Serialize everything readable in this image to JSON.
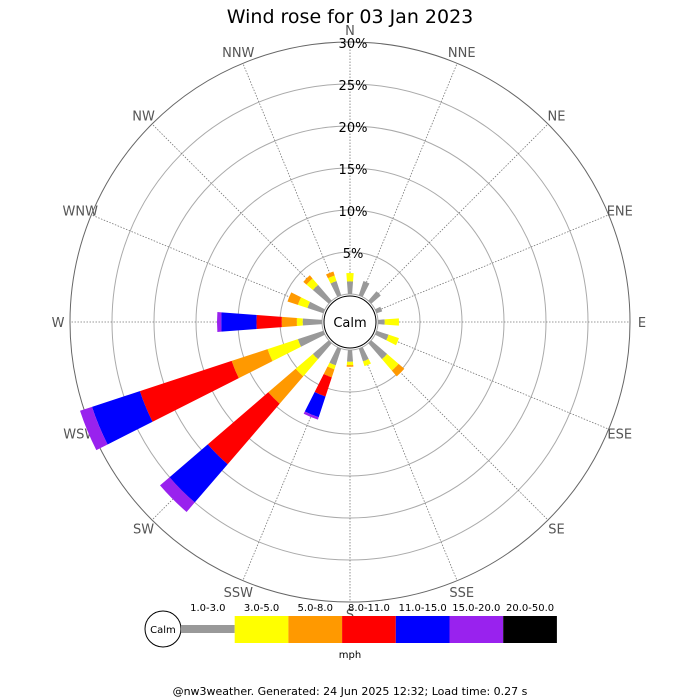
{
  "title": "Wind rose for 03 Jan 2023",
  "footer": "@nw3weather. Generated: 24 Jun 2025 12:32; Load time: 0.27 s",
  "chart_data": {
    "type": "wind-rose",
    "title": "Wind rose for 03 Jan 2023",
    "directions": [
      "N",
      "NNE",
      "NE",
      "ENE",
      "E",
      "ESE",
      "SE",
      "SSE",
      "S",
      "SSW",
      "SW",
      "WSW",
      "W",
      "WNW",
      "NW",
      "NNW"
    ],
    "radial_ticks": [
      "5%",
      "10%",
      "15%",
      "20%",
      "25%",
      "30%"
    ],
    "radial_max": 30,
    "radial_step": 5,
    "calm_label": "Calm",
    "unit": "mph",
    "bins": [
      {
        "label": "1.0-3.0",
        "color": "#999999"
      },
      {
        "label": "3.0-5.0",
        "color": "#ffff00"
      },
      {
        "label": "5.0-8.0",
        "color": "#ff9900"
      },
      {
        "label": "8.0-11.0",
        "color": "#ff0000"
      },
      {
        "label": "11.0-15.0",
        "color": "#0000ff"
      },
      {
        "label": "15.0-20.0",
        "color": "#9922ee"
      },
      {
        "label": "20.0-50.0",
        "color": "#000000"
      }
    ],
    "cumulative": {
      "N": [
        1.5,
        2.5
      ],
      "NNE": [
        1.8
      ],
      "NE": [
        1.5
      ],
      "ENE": [
        0.7
      ],
      "E": [
        0.8,
        2.5
      ],
      "ESE": [
        1.5,
        2.8
      ],
      "SE": [
        2.5,
        4.3,
        5.2
      ],
      "SSE": [
        1.6,
        2.2
      ],
      "S": [
        1.4,
        1.8,
        2.0
      ],
      "SSW": [
        2.1,
        2.6,
        3.6,
        6.0,
        8.6,
        8.9
      ],
      "SW": [
        2.5,
        5.2,
        9.5,
        19.0,
        25.0,
        26.5
      ],
      "WSW": [
        3.2,
        7.0,
        11.5,
        23.0,
        29.0,
        30.5
      ],
      "W": [
        2.3,
        3.0,
        4.8,
        7.8,
        12.0,
        12.5
      ],
      "WNW": [
        2.0,
        3.2,
        4.5
      ],
      "NW": [
        2.5,
        3.5,
        4.0
      ],
      "NNW": [
        1.8,
        2.5,
        3.0
      ]
    }
  }
}
